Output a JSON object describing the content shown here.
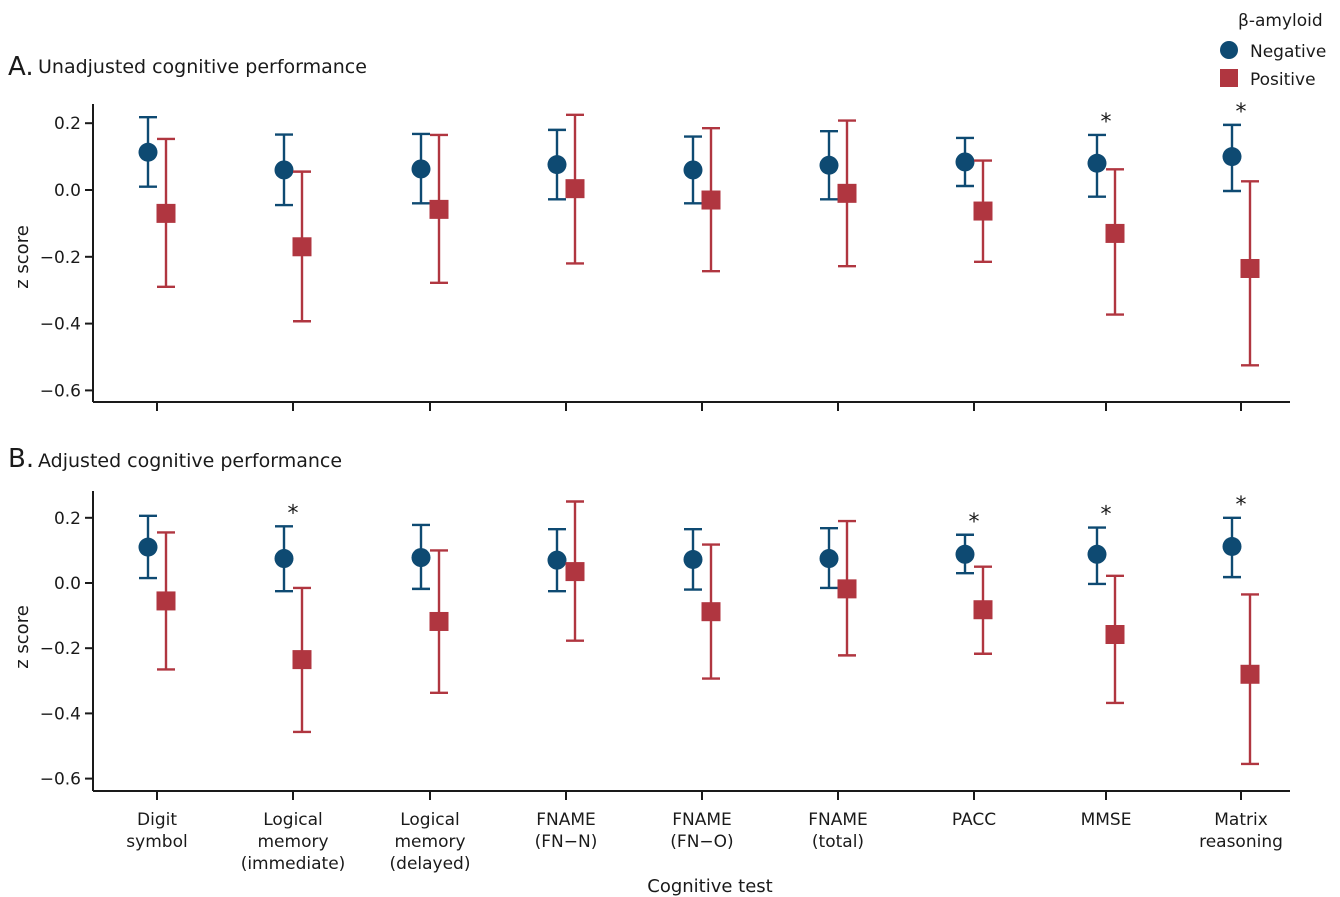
{
  "legend": {
    "title": "β-amyloid",
    "entries": [
      {
        "label": "Negative",
        "color": "#0e4a72",
        "marker": "circle"
      },
      {
        "label": "Positive",
        "color": "#b03640",
        "marker": "square"
      }
    ]
  },
  "xaxis": {
    "label": "Cognitive test",
    "categories": [
      [
        "Digit",
        "symbol"
      ],
      [
        "Logical",
        "memory",
        "(immediate)"
      ],
      [
        "Logical",
        "memory",
        "(delayed)"
      ],
      [
        "FNAME",
        "(FN−N)"
      ],
      [
        "FNAME",
        "(FN−O)"
      ],
      [
        "FNAME",
        "(total)"
      ],
      [
        "PACC"
      ],
      [
        "MMSE"
      ],
      [
        "Matrix",
        "reasoning"
      ]
    ]
  },
  "chart_data": [
    {
      "type": "scatter",
      "letter": "A.",
      "title": "Unadjusted cognitive performance",
      "ylabel": "z score",
      "ylim": [
        -0.63,
        0.26
      ],
      "yticks": [
        0.2,
        0.0,
        -0.2,
        -0.4,
        -0.6
      ],
      "ytick_labels": [
        "0.2",
        "0.0",
        "−0.2",
        "−0.4",
        "−0.6"
      ],
      "significant": [
        false,
        false,
        false,
        false,
        false,
        false,
        false,
        true,
        true
      ],
      "series": [
        {
          "name": "Negative",
          "values": [
            0.113,
            0.06,
            0.063,
            0.076,
            0.06,
            0.074,
            0.084,
            0.08,
            0.1
          ],
          "lower": [
            0.01,
            -0.045,
            -0.04,
            -0.028,
            -0.04,
            -0.028,
            0.012,
            -0.02,
            -0.003
          ],
          "upper": [
            0.218,
            0.166,
            0.168,
            0.18,
            0.16,
            0.176,
            0.156,
            0.165,
            0.195
          ]
        },
        {
          "name": "Positive",
          "values": [
            -0.07,
            -0.17,
            -0.058,
            0.004,
            -0.03,
            -0.01,
            -0.063,
            -0.13,
            -0.235
          ],
          "lower": [
            -0.29,
            -0.393,
            -0.278,
            -0.22,
            -0.243,
            -0.228,
            -0.215,
            -0.373,
            -0.525
          ],
          "upper": [
            0.153,
            0.055,
            0.165,
            0.225,
            0.185,
            0.208,
            0.088,
            0.062,
            0.026
          ]
        }
      ]
    },
    {
      "type": "scatter",
      "letter": "B.",
      "title": "Adjusted cognitive performance",
      "xlabel": "Cognitive test",
      "ylabel": "z score",
      "ylim": [
        -0.63,
        0.28
      ],
      "yticks": [
        0.2,
        0.0,
        -0.2,
        -0.4,
        -0.6
      ],
      "ytick_labels": [
        "0.2",
        "0.0",
        "−0.2",
        "−0.4",
        "−0.6"
      ],
      "significant": [
        false,
        true,
        false,
        false,
        false,
        false,
        true,
        true,
        true
      ],
      "series": [
        {
          "name": "Negative",
          "values": [
            0.11,
            0.075,
            0.078,
            0.07,
            0.072,
            0.075,
            0.088,
            0.088,
            0.112
          ],
          "lower": [
            0.015,
            -0.025,
            -0.018,
            -0.025,
            -0.02,
            -0.015,
            0.03,
            -0.003,
            0.018
          ],
          "upper": [
            0.206,
            0.174,
            0.178,
            0.165,
            0.165,
            0.168,
            0.148,
            0.17,
            0.2
          ]
        },
        {
          "name": "Positive",
          "values": [
            -0.055,
            -0.235,
            -0.118,
            0.035,
            -0.088,
            -0.018,
            -0.082,
            -0.158,
            -0.28
          ],
          "lower": [
            -0.265,
            -0.457,
            -0.337,
            -0.177,
            -0.293,
            -0.222,
            -0.217,
            -0.368,
            -0.555
          ],
          "upper": [
            0.155,
            -0.015,
            0.1,
            0.25,
            0.118,
            0.19,
            0.05,
            0.022,
            -0.035
          ]
        }
      ]
    }
  ]
}
